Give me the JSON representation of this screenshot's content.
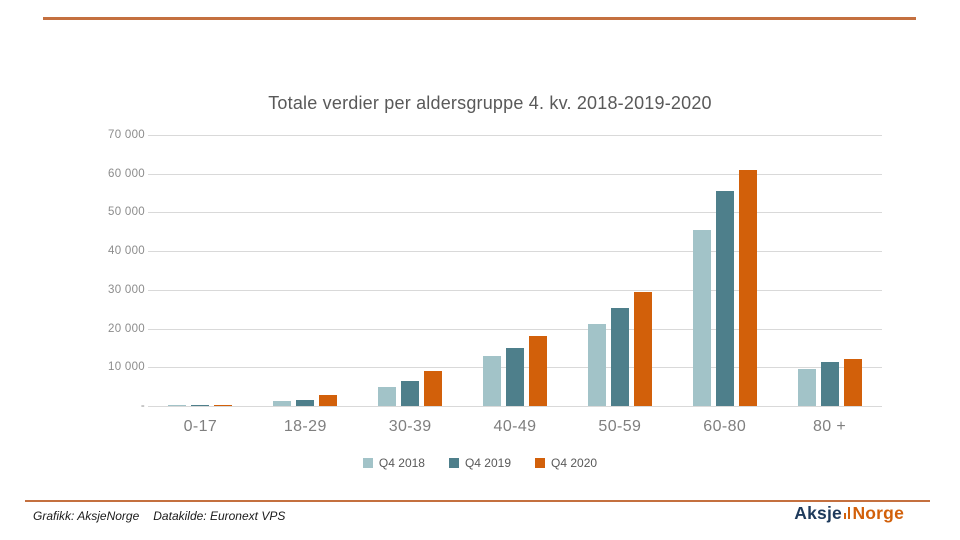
{
  "page": {
    "top_rule_color": "#c4703f",
    "bottom_rule_color": "#c4703f"
  },
  "chart_data": {
    "type": "bar",
    "title": "Totale verdier per aldersgruppe 4. kv. 2018-2019-2020",
    "categories": [
      "0-17",
      "18-29",
      "30-39",
      "40-49",
      "50-59",
      "60-80",
      "80 +"
    ],
    "series": [
      {
        "name": "Q4 2018",
        "color": "#a2c3c8",
        "values": [
          150,
          1300,
          5000,
          12900,
          21200,
          45500,
          9500
        ]
      },
      {
        "name": "Q4 2019",
        "color": "#4e7f8b",
        "values": [
          150,
          1600,
          6400,
          14900,
          25200,
          55500,
          11300
        ]
      },
      {
        "name": "Q4 2020",
        "color": "#d2600a",
        "values": [
          250,
          2800,
          9000,
          18100,
          29500,
          61000,
          12100
        ]
      }
    ],
    "xlabel": "",
    "ylabel": "",
    "ylim": [
      0,
      70000
    ],
    "grid": true,
    "legend_position": "bottom",
    "y_ticks": [
      {
        "value": 70000,
        "label": "70 000"
      },
      {
        "value": 60000,
        "label": "60 000"
      },
      {
        "value": 50000,
        "label": "50 000"
      },
      {
        "value": 40000,
        "label": "40 000"
      },
      {
        "value": 30000,
        "label": "30 000"
      },
      {
        "value": 20000,
        "label": "20 000"
      },
      {
        "value": 10000,
        "label": "10 000"
      },
      {
        "value": 0,
        "label": "-"
      }
    ]
  },
  "footer": {
    "credit": "Grafikk: AksjeNorge",
    "source": "Datakilde: Euronext VPS",
    "logo": {
      "part1": "Aksje",
      "part2": "Norge",
      "accent_color": "#d2600a",
      "text_color": "#1e3a5c"
    }
  }
}
